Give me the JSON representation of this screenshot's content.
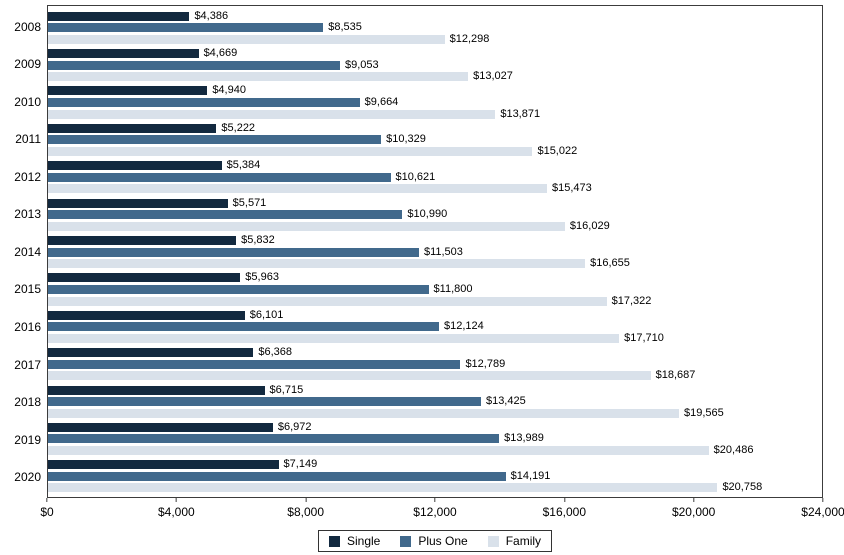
{
  "chart_data": {
    "type": "bar",
    "orientation": "horizontal",
    "title": "",
    "xlabel": "",
    "ylabel": "",
    "grid": false,
    "legend_position": "bottom-center",
    "value_prefix": "$",
    "xlim": [
      0,
      24000
    ],
    "x_ticks": [
      "$0",
      "$4,000",
      "$8,000",
      "$12,000",
      "$16,000",
      "$20,000",
      "$24,000"
    ],
    "categories": [
      "2008",
      "2009",
      "2010",
      "2011",
      "2012",
      "2013",
      "2014",
      "2015",
      "2016",
      "2017",
      "2018",
      "2019",
      "2020"
    ],
    "series": [
      {
        "name": "Single",
        "color": "#12293f",
        "values": [
          4386,
          4669,
          4940,
          5222,
          5384,
          5571,
          5832,
          5963,
          6101,
          6368,
          6715,
          6972,
          7149
        ]
      },
      {
        "name": "Plus One",
        "color": "#41698c",
        "values": [
          8535,
          9053,
          9664,
          10329,
          10621,
          10990,
          11503,
          11800,
          12124,
          12789,
          13425,
          13989,
          14191
        ]
      },
      {
        "name": "Family",
        "color": "#d9e1ea",
        "values": [
          12298,
          13027,
          13871,
          15022,
          15473,
          16029,
          16655,
          17322,
          17710,
          18687,
          19565,
          20486,
          20758
        ]
      }
    ],
    "value_labels": {
      "Single": [
        "$4,386",
        "$4,669",
        "$4,940",
        "$5,222",
        "$5,384",
        "$5,571",
        "$5,832",
        "$5,963",
        "$6,101",
        "$6,368",
        "$6,715",
        "$6,972",
        "$7,149"
      ],
      "Plus One": [
        "$8,535",
        "$9,053",
        "$9,664",
        "$10,329",
        "$10,621",
        "$10,990",
        "$11,503",
        "$11,800",
        "$12,124",
        "$12,789",
        "$13,425",
        "$13,989",
        "$14,191"
      ],
      "Family": [
        "$12,298",
        "$13,027",
        "$13,871",
        "$15,022",
        "$15,473",
        "$16,029",
        "$16,655",
        "$17,322",
        "$17,710",
        "$18,687",
        "$19,565",
        "$20,486",
        "$20,758"
      ]
    },
    "legend": [
      "Single",
      "Plus One",
      "Family"
    ]
  },
  "colors": {
    "plot_border": "#3c3c3c",
    "background": "#ffffff",
    "text": "#000000"
  }
}
